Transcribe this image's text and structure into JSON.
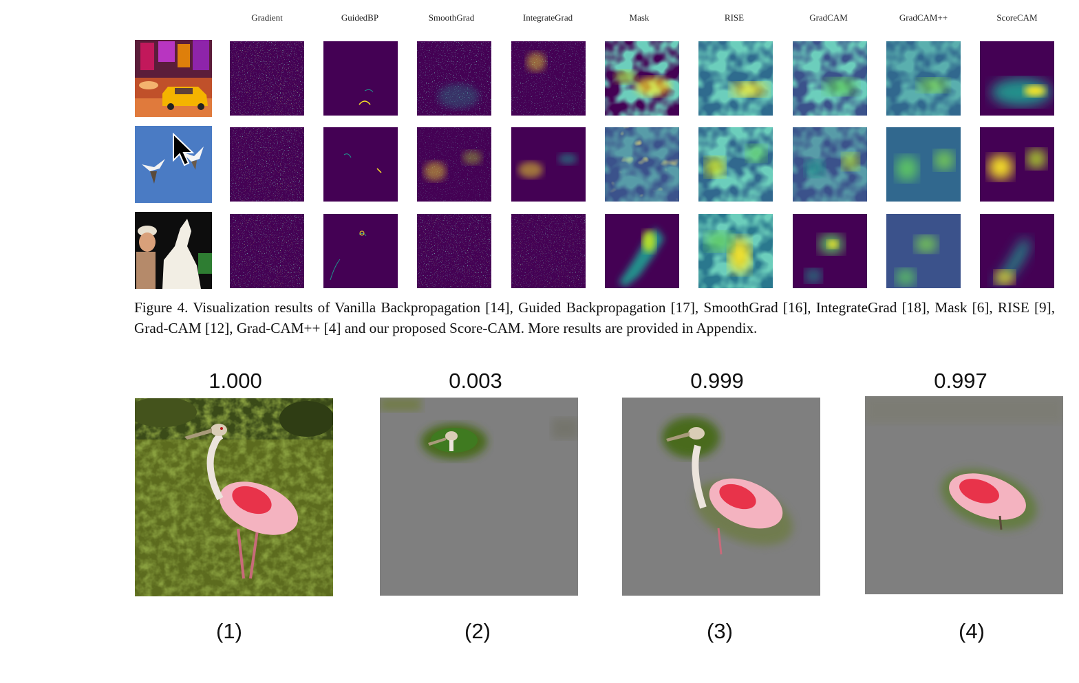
{
  "figure4": {
    "columns": [
      "Gradient",
      "GuidedBP",
      "SmoothGrad",
      "IntegrateGrad",
      "Mask",
      "RISE",
      "GradCAM",
      "GradCAM++",
      "ScoreCAM"
    ],
    "rows": [
      "street-scene",
      "birds",
      "dog-and-person"
    ],
    "caption": "Figure 4. Visualization results of Vanilla Backpropagation [14], Guided Backpropagation [17], SmoothGrad [16], IntegrateGrad [18], Mask [6], RISE [9], Grad-CAM [12], Grad-CAM++ [4] and our proposed Score-CAM. More results are provided in Appendix."
  },
  "panels": [
    {
      "score": "1.000",
      "label": "(1)"
    },
    {
      "score": "0.003",
      "label": "(2)"
    },
    {
      "score": "0.999",
      "label": "(3)"
    },
    {
      "score": "0.997",
      "label": "(4)"
    }
  ],
  "colors": {
    "heatmap_bg": "#440154",
    "heatmap_mid": "#21918c",
    "heatmap_high": "#fde725",
    "mask_gray": "#7d7d7d",
    "grass": "#5a6a1c",
    "flamingo_pink": "#e8466a"
  }
}
